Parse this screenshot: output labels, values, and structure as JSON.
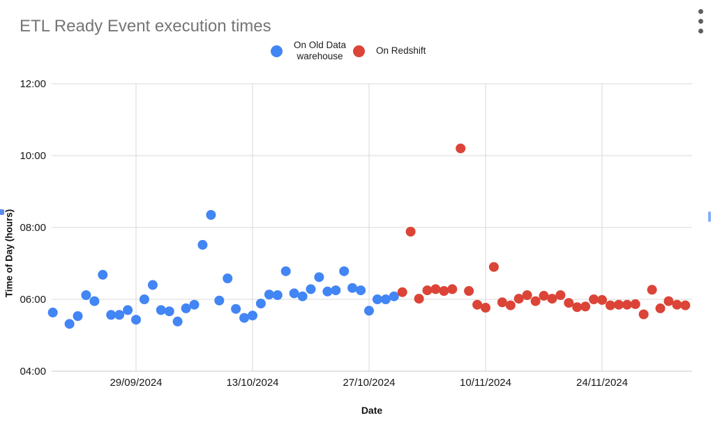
{
  "header": {
    "more_options_icon": "vertical-ellipsis"
  },
  "legend": {
    "items": [
      {
        "lines": [
          "On Old Data",
          "warehouse"
        ],
        "color": "#4285f4"
      },
      {
        "lines": [
          "On Redshift"
        ],
        "color": "#db4437"
      }
    ]
  },
  "chart_data": {
    "type": "scatter",
    "title": "ETL Ready Event execution times",
    "xlabel": "Date",
    "ylabel": "Time of Day (hours)",
    "x_tick_labels": [
      "29/09/2024",
      "13/10/2024",
      "27/10/2024",
      "10/11/2024",
      "24/11/2024"
    ],
    "y_tick_labels": [
      "04:00",
      "06:00",
      "08:00",
      "10:00",
      "12:00"
    ],
    "ylim_hours": [
      4,
      12
    ],
    "grid": true,
    "legend_position": "top-center",
    "series": [
      {
        "name": "On Old Data warehouse",
        "color": "#4285f4",
        "points": [
          {
            "date": "19/09/2024",
            "time": "05:38"
          },
          {
            "date": "21/09/2024",
            "time": "05:19"
          },
          {
            "date": "22/09/2024",
            "time": "05:32"
          },
          {
            "date": "23/09/2024",
            "time": "06:07"
          },
          {
            "date": "24/09/2024",
            "time": "05:57"
          },
          {
            "date": "25/09/2024",
            "time": "06:41"
          },
          {
            "date": "26/09/2024",
            "time": "05:34"
          },
          {
            "date": "27/09/2024",
            "time": "05:34"
          },
          {
            "date": "28/09/2024",
            "time": "05:42"
          },
          {
            "date": "29/09/2024",
            "time": "05:26"
          },
          {
            "date": "30/09/2024",
            "time": "06:00"
          },
          {
            "date": "01/10/2024",
            "time": "06:24"
          },
          {
            "date": "02/10/2024",
            "time": "05:42"
          },
          {
            "date": "03/10/2024",
            "time": "05:40"
          },
          {
            "date": "04/10/2024",
            "time": "05:23"
          },
          {
            "date": "05/10/2024",
            "time": "05:45"
          },
          {
            "date": "06/10/2024",
            "time": "05:51"
          },
          {
            "date": "07/10/2024",
            "time": "07:31"
          },
          {
            "date": "08/10/2024",
            "time": "08:21"
          },
          {
            "date": "09/10/2024",
            "time": "05:58"
          },
          {
            "date": "10/10/2024",
            "time": "06:35"
          },
          {
            "date": "11/10/2024",
            "time": "05:44"
          },
          {
            "date": "12/10/2024",
            "time": "05:29"
          },
          {
            "date": "13/10/2024",
            "time": "05:33"
          },
          {
            "date": "14/10/2024",
            "time": "05:53"
          },
          {
            "date": "15/10/2024",
            "time": "06:08"
          },
          {
            "date": "16/10/2024",
            "time": "06:07"
          },
          {
            "date": "17/10/2024",
            "time": "06:47"
          },
          {
            "date": "18/10/2024",
            "time": "06:10"
          },
          {
            "date": "19/10/2024",
            "time": "06:05"
          },
          {
            "date": "20/10/2024",
            "time": "06:17"
          },
          {
            "date": "21/10/2024",
            "time": "06:37"
          },
          {
            "date": "22/10/2024",
            "time": "06:13"
          },
          {
            "date": "23/10/2024",
            "time": "06:15"
          },
          {
            "date": "24/10/2024",
            "time": "06:47"
          },
          {
            "date": "25/10/2024",
            "time": "06:19"
          },
          {
            "date": "26/10/2024",
            "time": "06:15"
          },
          {
            "date": "27/10/2024",
            "time": "05:41"
          },
          {
            "date": "28/10/2024",
            "time": "06:00"
          },
          {
            "date": "29/10/2024",
            "time": "06:00"
          },
          {
            "date": "30/10/2024",
            "time": "06:05"
          }
        ]
      },
      {
        "name": "On Redshift",
        "color": "#db4437",
        "points": [
          {
            "date": "31/10/2024",
            "time": "06:12"
          },
          {
            "date": "01/11/2024",
            "time": "07:53"
          },
          {
            "date": "02/11/2024",
            "time": "06:01"
          },
          {
            "date": "03/11/2024",
            "time": "06:15"
          },
          {
            "date": "04/11/2024",
            "time": "06:17"
          },
          {
            "date": "05/11/2024",
            "time": "06:14"
          },
          {
            "date": "06/11/2024",
            "time": "06:17"
          },
          {
            "date": "07/11/2024",
            "time": "10:12"
          },
          {
            "date": "08/11/2024",
            "time": "06:14"
          },
          {
            "date": "09/11/2024",
            "time": "05:51"
          },
          {
            "date": "10/11/2024",
            "time": "05:46"
          },
          {
            "date": "11/11/2024",
            "time": "06:54"
          },
          {
            "date": "12/11/2024",
            "time": "05:55"
          },
          {
            "date": "13/11/2024",
            "time": "05:50"
          },
          {
            "date": "14/11/2024",
            "time": "06:01"
          },
          {
            "date": "15/11/2024",
            "time": "06:07"
          },
          {
            "date": "16/11/2024",
            "time": "05:57"
          },
          {
            "date": "17/11/2024",
            "time": "06:06"
          },
          {
            "date": "18/11/2024",
            "time": "06:01"
          },
          {
            "date": "19/11/2024",
            "time": "06:07"
          },
          {
            "date": "20/11/2024",
            "time": "05:54"
          },
          {
            "date": "21/11/2024",
            "time": "05:47"
          },
          {
            "date": "22/11/2024",
            "time": "05:48"
          },
          {
            "date": "23/11/2024",
            "time": "06:00"
          },
          {
            "date": "24/11/2024",
            "time": "05:59"
          },
          {
            "date": "25/11/2024",
            "time": "05:50"
          },
          {
            "date": "26/11/2024",
            "time": "05:51"
          },
          {
            "date": "27/11/2024",
            "time": "05:51"
          },
          {
            "date": "28/11/2024",
            "time": "05:52"
          },
          {
            "date": "29/11/2024",
            "time": "05:35"
          },
          {
            "date": "30/11/2024",
            "time": "06:16"
          },
          {
            "date": "01/12/2024",
            "time": "05:45"
          },
          {
            "date": "02/12/2024",
            "time": "05:57"
          },
          {
            "date": "03/12/2024",
            "time": "05:51"
          },
          {
            "date": "04/12/2024",
            "time": "05:50"
          }
        ]
      }
    ],
    "colors": {
      "grid": "#d9d9d9",
      "title_text": "#757575",
      "edge_handle": "#5b8def"
    }
  }
}
